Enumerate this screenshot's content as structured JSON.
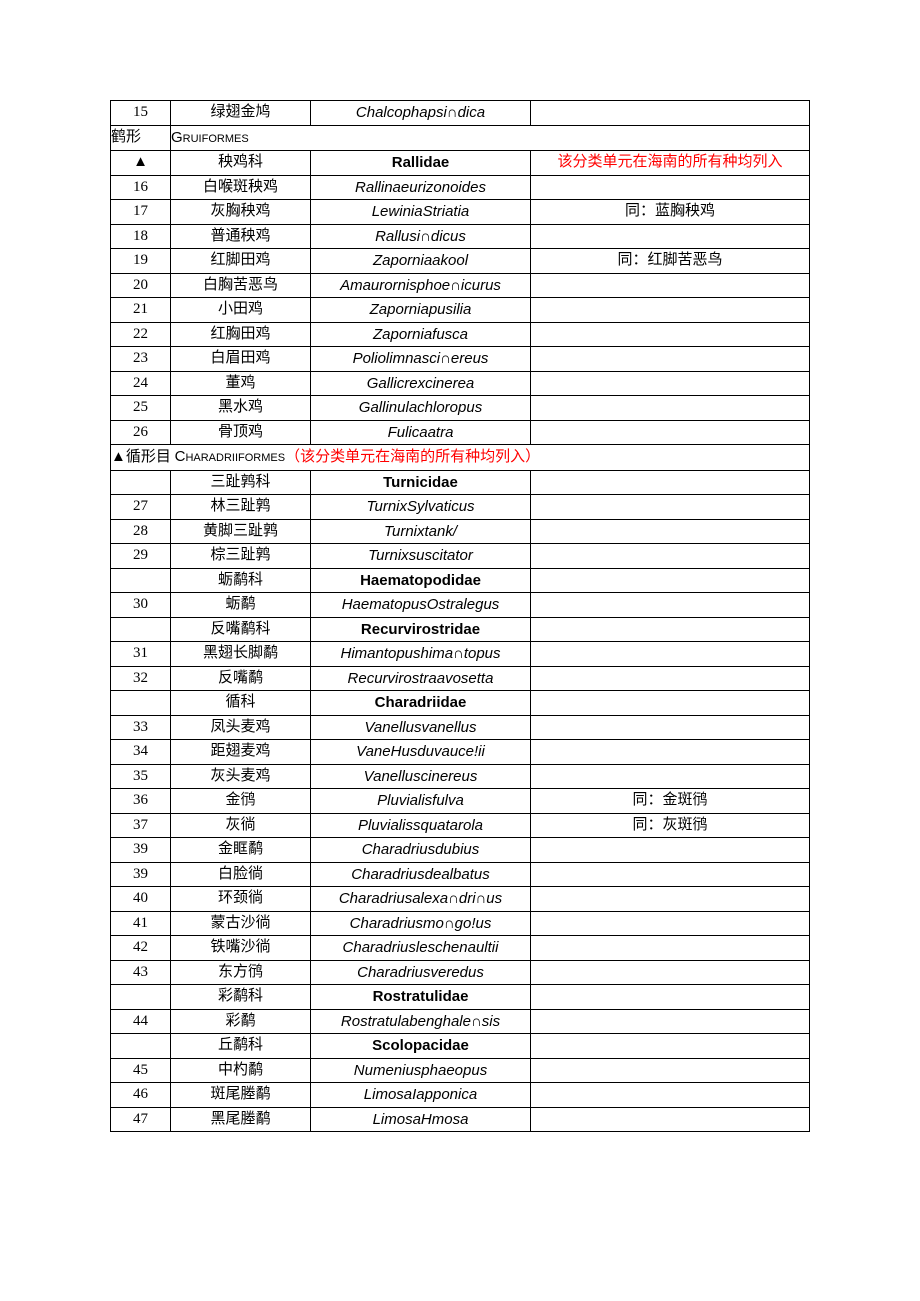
{
  "colors": {
    "text": "#000000",
    "accent": "#ff0000",
    "border": "#000000",
    "background": "#ffffff"
  },
  "rows": [
    {
      "type": "species",
      "idx": "15",
      "cn": "绿翅金鸠",
      "lat": "Chalcophapsi∩dica",
      "note": ""
    },
    {
      "type": "order2col",
      "leftCn": "鹤形",
      "latin": "Gruiformes"
    },
    {
      "type": "family",
      "idx": "▲",
      "cn": "秧鸡科",
      "lat": "Rallidae",
      "note": "该分类单元在海南的所有种均列入",
      "noteRed": true
    },
    {
      "type": "species",
      "idx": "16",
      "cn": "白喉斑秧鸡",
      "lat": "Rallinaeurizonoides",
      "note": ""
    },
    {
      "type": "species",
      "idx": "17",
      "cn": "灰胸秧鸡",
      "lat": "LewiniaStriatia",
      "note": "同：蓝胸秧鸡"
    },
    {
      "type": "species",
      "idx": "18",
      "cn": "普通秧鸡",
      "lat": "Rallusi∩dicus",
      "note": ""
    },
    {
      "type": "species",
      "idx": "19",
      "cn": "红脚田鸡",
      "lat": "Zaporniaakool",
      "note": "同：红脚苦恶鸟"
    },
    {
      "type": "species",
      "idx": "20",
      "cn": "白胸苦恶鸟",
      "lat": "Amaurornisphoe∩icurus",
      "note": ""
    },
    {
      "type": "species",
      "idx": "21",
      "cn": "小田鸡",
      "lat": "Zaporniapusilia",
      "note": ""
    },
    {
      "type": "species",
      "idx": "22",
      "cn": "红胸田鸡",
      "lat": "Zaporniafusca",
      "note": ""
    },
    {
      "type": "species",
      "idx": "23",
      "cn": "白眉田鸡",
      "lat": "Poliolimnasci∩ereus",
      "note": ""
    },
    {
      "type": "species",
      "idx": "24",
      "cn": "董鸡",
      "lat": "Gallicrexcinerea",
      "note": ""
    },
    {
      "type": "species",
      "idx": "25",
      "cn": "黑水鸡",
      "lat": "Gallinulachloropus",
      "note": ""
    },
    {
      "type": "species",
      "idx": "26",
      "cn": "骨顶鸡",
      "lat": "Fulicaatra",
      "note": ""
    },
    {
      "type": "orderFull",
      "prefix": "▲循形目 ",
      "latin": "Charadriiformes",
      "suffix": "（该分类单元在海南的所有种均列入）"
    },
    {
      "type": "family",
      "idx": "",
      "cn": "三趾鹑科",
      "lat": "Turnicidae",
      "note": ""
    },
    {
      "type": "species",
      "idx": "27",
      "cn": "林三趾鹑",
      "lat": "TurnixSylvaticus",
      "note": ""
    },
    {
      "type": "species",
      "idx": "28",
      "cn": "黄脚三趾鹑",
      "lat": "Turnixtank/",
      "note": ""
    },
    {
      "type": "species",
      "idx": "29",
      "cn": "棕三趾鹑",
      "lat": "Turnixsuscitator",
      "note": ""
    },
    {
      "type": "family",
      "idx": "",
      "cn": "蛎鹬科",
      "lat": "Haematopodidae",
      "note": ""
    },
    {
      "type": "species",
      "idx": "30",
      "cn": "蛎鹬",
      "lat": "HaematopusOstralegus",
      "note": ""
    },
    {
      "type": "family",
      "idx": "",
      "cn": "反嘴鹬科",
      "lat": "Recurvirostridae",
      "note": ""
    },
    {
      "type": "species",
      "idx": "31",
      "cn": "黑翅长脚鹬",
      "lat": "Himantopushima∩topus",
      "note": ""
    },
    {
      "type": "species",
      "idx": "32",
      "cn": "反嘴鹬",
      "lat": "Recurvirostraavosetta",
      "note": ""
    },
    {
      "type": "family",
      "idx": "",
      "cn": "循科",
      "lat": "Charadriidae",
      "note": ""
    },
    {
      "type": "species",
      "idx": "33",
      "cn": "凤头麦鸡",
      "lat": "Vanellusvanellus",
      "note": ""
    },
    {
      "type": "species",
      "idx": "34",
      "cn": "距翅麦鸡",
      "lat": "VaneHusduvauce!ii",
      "note": ""
    },
    {
      "type": "species",
      "idx": "35",
      "cn": "灰头麦鸡",
      "lat": "Vanelluscinereus",
      "note": ""
    },
    {
      "type": "species",
      "idx": "36",
      "cn": "金鸻",
      "lat": "Pluvialisfulva",
      "note": "同：金斑鸻"
    },
    {
      "type": "species",
      "idx": "37",
      "cn": "灰徜",
      "lat": "Pluvialissquatarola",
      "note": "同：灰斑鸻"
    },
    {
      "type": "species",
      "idx": "39",
      "cn": "金眶鹬",
      "lat": "Charadriusdubius",
      "note": ""
    },
    {
      "type": "species",
      "idx": "39",
      "cn": "白脸徜",
      "lat": "Charadriusdealbatus",
      "note": ""
    },
    {
      "type": "species",
      "idx": "40",
      "cn": "环颈徜",
      "lat": "Charadriusalexa∩dri∩us",
      "note": ""
    },
    {
      "type": "species",
      "idx": "41",
      "cn": "蒙古沙徜",
      "lat": "Charadriusmo∩go!us",
      "note": ""
    },
    {
      "type": "species",
      "idx": "42",
      "cn": "铁嘴沙徜",
      "lat": "Charadriusleschenaultii",
      "note": ""
    },
    {
      "type": "species",
      "idx": "43",
      "cn": "东方鸻",
      "lat": "Charadriusveredus",
      "note": ""
    },
    {
      "type": "family",
      "idx": "",
      "cn": "彩鹬科",
      "lat": "Rostratulidae",
      "note": ""
    },
    {
      "type": "species",
      "idx": "44",
      "cn": "彩鹬",
      "lat": "Rostratulabenghale∩sis",
      "note": ""
    },
    {
      "type": "family",
      "idx": "",
      "cn": "丘鹬科",
      "lat": "Scolopacidae",
      "note": ""
    },
    {
      "type": "species",
      "idx": "45",
      "cn": "中杓鹬",
      "lat": "Numeniusphaeopus",
      "note": ""
    },
    {
      "type": "species",
      "idx": "46",
      "cn": "斑尾塍鹬",
      "lat": "LimosaIapponica",
      "note": ""
    },
    {
      "type": "species",
      "idx": "47",
      "cn": "黑尾塍鹬",
      "lat": "LimosaHmosa",
      "note": ""
    }
  ]
}
